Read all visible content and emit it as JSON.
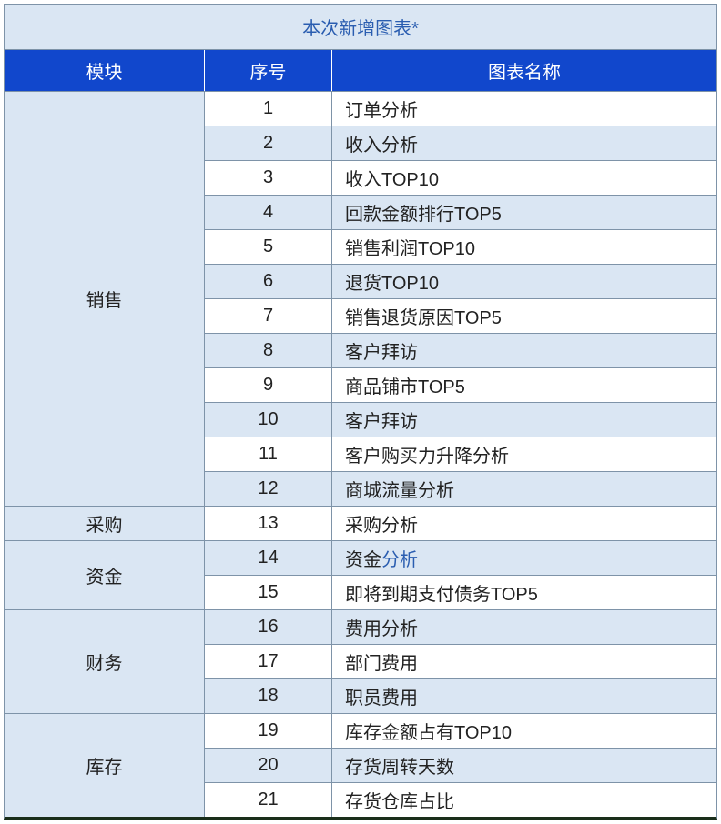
{
  "title": "本次新增图表*",
  "columns": {
    "module": "模块",
    "seq": "序号",
    "name": "图表名称"
  },
  "colors": {
    "title_bg": "#dae6f3",
    "title_text": "#2a5db0",
    "header_bg": "#1147cc",
    "header_text": "#ffffff",
    "row_even_bg": "#dae6f3",
    "row_odd_bg": "#ffffff",
    "border": "#7e93a8",
    "link_text": "#2a5db0",
    "bottom_border": "#1a2e1a"
  },
  "groups": [
    {
      "module": "销售",
      "rows": [
        {
          "seq": "1",
          "name": "订单分析"
        },
        {
          "seq": "2",
          "name": "收入分析"
        },
        {
          "seq": "3",
          "name": "收入TOP10"
        },
        {
          "seq": "4",
          "name": "回款金额排行TOP5"
        },
        {
          "seq": "5",
          "name": "销售利润TOP10"
        },
        {
          "seq": "6",
          "name": "退货TOP10"
        },
        {
          "seq": "7",
          "name": "销售退货原因TOP5"
        },
        {
          "seq": "8",
          "name": "客户拜访"
        },
        {
          "seq": "9",
          "name": "商品铺市TOP5"
        },
        {
          "seq": "10",
          "name": "客户拜访"
        },
        {
          "seq": "11",
          "name": "客户购买力升降分析"
        },
        {
          "seq": "12",
          "name": "商城流量分析"
        }
      ]
    },
    {
      "module": "采购",
      "rows": [
        {
          "seq": "13",
          "name": "采购分析"
        }
      ]
    },
    {
      "module": "资金",
      "rows": [
        {
          "seq": "14",
          "name_prefix": "资金",
          "name_link": "分析"
        },
        {
          "seq": "15",
          "name": "即将到期支付债务TOP5"
        }
      ]
    },
    {
      "module": "财务",
      "rows": [
        {
          "seq": "16",
          "name": "费用分析"
        },
        {
          "seq": "17",
          "name": "部门费用"
        },
        {
          "seq": "18",
          "name": "职员费用"
        }
      ]
    },
    {
      "module": "库存",
      "rows": [
        {
          "seq": "19",
          "name": "库存金额占有TOP10"
        },
        {
          "seq": "20",
          "name": "存货周转天数"
        },
        {
          "seq": "21",
          "name": "存货仓库占比"
        }
      ]
    }
  ]
}
